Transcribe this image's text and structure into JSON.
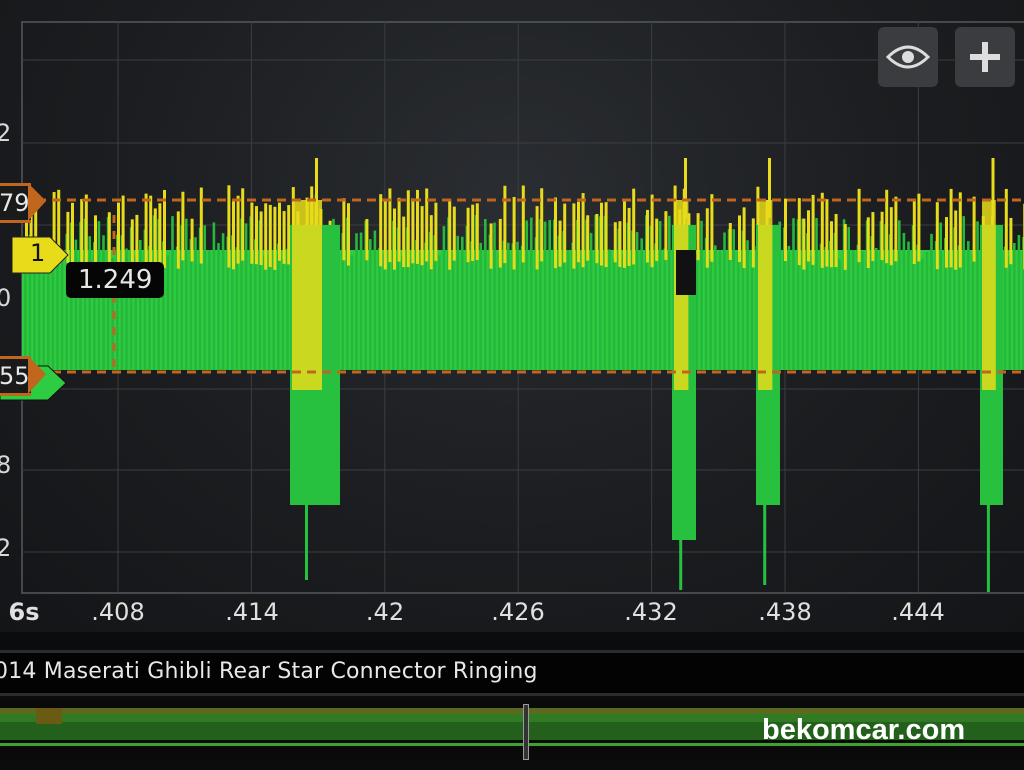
{
  "scope": {
    "y_axis_labels": [
      "2",
      "0",
      "8",
      "2"
    ],
    "x_axis_labels": [
      "6s",
      ".408",
      ".414",
      ".42",
      ".426",
      ".432",
      ".438",
      ".444"
    ],
    "markers": {
      "upper_threshold": "79",
      "channel": "1",
      "lower_threshold": "55"
    },
    "cursor_readout": "1.249",
    "toolbar": {
      "view_icon": "eye-icon",
      "add_icon": "plus-icon"
    },
    "colors": {
      "channel_a": "#2ecc40",
      "channel_b": "#e8dc1a",
      "threshold": "#c0661e",
      "grid": "#3a3d42"
    }
  },
  "capture": {
    "title": "014 Maserati Ghibli Rear Star Connector Ringing"
  },
  "watermark": "bekomcar.com"
}
